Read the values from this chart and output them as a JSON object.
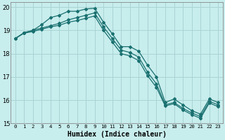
{
  "xlabel": "Humidex (Indice chaleur)",
  "background_color": "#c8eded",
  "grid_color": "#aad4d4",
  "line_color": "#1a7070",
  "xlim": [
    -0.5,
    23.5
  ],
  "ylim": [
    15,
    20.2
  ],
  "yticks": [
    15,
    16,
    17,
    18,
    19,
    20
  ],
  "xticks": [
    0,
    1,
    2,
    3,
    4,
    5,
    6,
    7,
    8,
    9,
    10,
    11,
    12,
    13,
    14,
    15,
    16,
    17,
    18,
    19,
    20,
    21,
    22,
    23
  ],
  "series1_x": [
    0,
    1,
    2,
    3,
    4,
    5,
    6,
    7,
    8,
    9,
    10,
    11,
    12,
    13,
    14,
    15,
    16,
    17,
    18,
    19,
    20,
    21,
    22,
    23
  ],
  "series1_y": [
    18.65,
    18.9,
    19.0,
    19.25,
    19.55,
    19.65,
    19.82,
    19.82,
    19.92,
    19.95,
    19.35,
    18.85,
    18.3,
    18.3,
    18.1,
    17.5,
    17.0,
    15.9,
    16.05,
    15.8,
    15.55,
    15.4,
    16.05,
    15.9
  ],
  "series2_x": [
    0,
    1,
    2,
    3,
    4,
    5,
    6,
    7,
    8,
    9,
    10,
    11,
    12,
    13,
    14,
    15,
    16,
    17,
    18,
    19,
    20,
    21,
    22,
    23
  ],
  "series2_y": [
    18.65,
    18.9,
    19.0,
    19.1,
    19.2,
    19.3,
    19.45,
    19.55,
    19.65,
    19.75,
    19.15,
    18.65,
    18.15,
    18.05,
    17.85,
    17.2,
    16.7,
    15.8,
    15.9,
    15.65,
    15.45,
    15.3,
    15.95,
    15.8
  ],
  "series3_x": [
    0,
    1,
    2,
    3,
    4,
    5,
    6,
    7,
    8,
    9,
    10,
    11,
    12,
    13,
    14,
    15,
    16,
    17,
    18,
    19,
    20,
    21,
    22,
    23
  ],
  "series3_y": [
    18.65,
    18.88,
    18.95,
    19.05,
    19.15,
    19.22,
    19.35,
    19.42,
    19.52,
    19.62,
    19.0,
    18.5,
    18.0,
    17.9,
    17.7,
    17.05,
    16.55,
    15.75,
    15.85,
    15.58,
    15.38,
    15.22,
    15.88,
    15.72
  ]
}
